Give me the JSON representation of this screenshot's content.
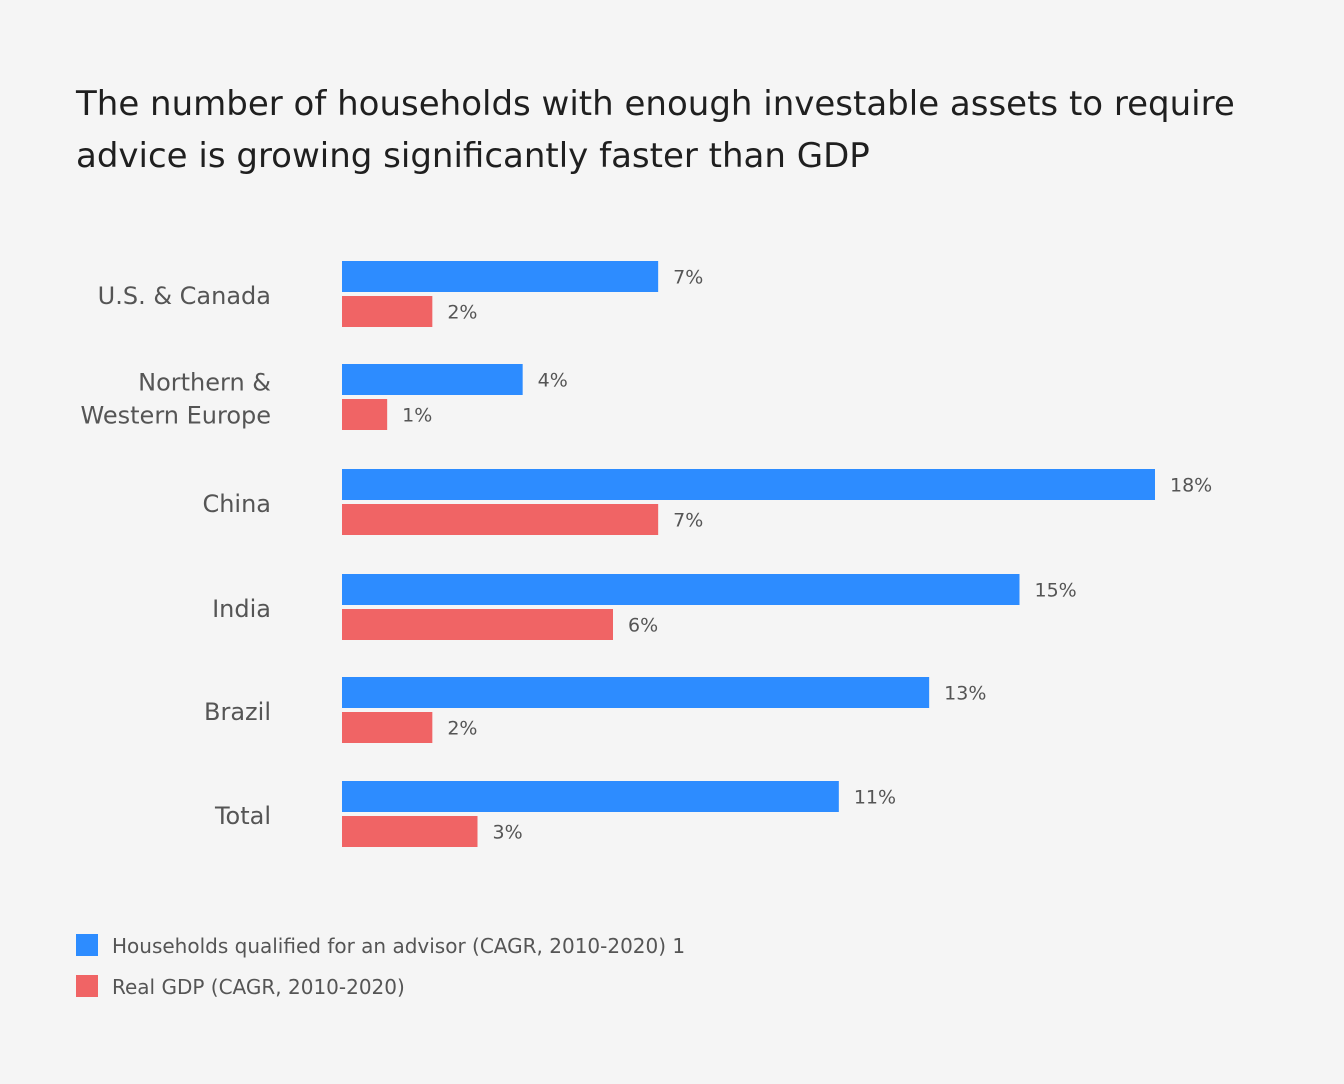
{
  "chart_data": {
    "type": "bar",
    "orientation": "horizontal",
    "title_lines": [
      "The number of households with enough investable assets to require",
      "advice is growing significantly faster than GDP"
    ],
    "categories": [
      [
        "U.S. & Canada"
      ],
      [
        "Northern &",
        "Western Europe"
      ],
      [
        "China"
      ],
      [
        "India"
      ],
      [
        "Brazil"
      ],
      [
        "Total"
      ]
    ],
    "series": [
      {
        "name": "Households qualified for an advisor  (CAGR, 2010-2020) 1",
        "color": "#2d8cff",
        "values": [
          7,
          4,
          18,
          15,
          13,
          11
        ],
        "labels": [
          "7%",
          "4%",
          "18%",
          "15%",
          "13%",
          "11%"
        ]
      },
      {
        "name": "Real GDP (CAGR, 2010-2020)",
        "color": "#f06465",
        "values": [
          2,
          1,
          7,
          6,
          2,
          3
        ],
        "labels": [
          "2%",
          "1%",
          "7%",
          "6%",
          "2%",
          "3%"
        ]
      }
    ],
    "xlim": [
      0,
      18
    ],
    "grid": false,
    "legend_position": "bottom-left"
  }
}
